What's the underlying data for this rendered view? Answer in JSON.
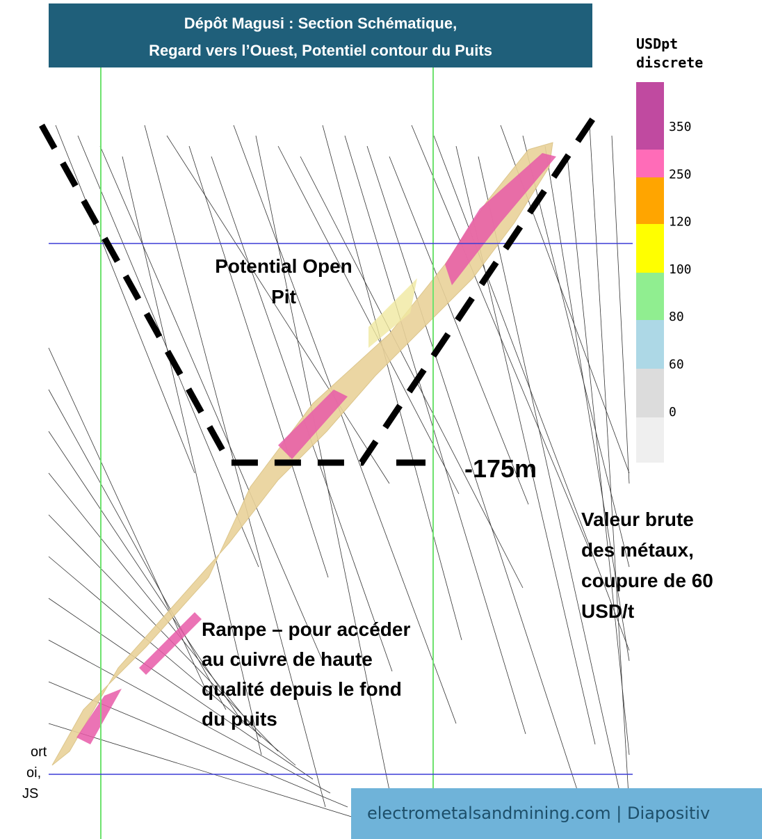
{
  "header": {
    "title_lines": [
      "Dépôt Magusi : Section Schématique,",
      "Regard vers l’Ouest, Potentiel contour du Puits"
    ]
  },
  "legend": {
    "title_lines": [
      "USDpt",
      "discrete"
    ],
    "labels": [
      "350",
      "250",
      "120",
      "100",
      "80",
      "60",
      "0"
    ]
  },
  "annotations": {
    "open_pit": [
      "Potential Open",
      "Pit"
    ],
    "depth": "-175m",
    "value_note": [
      "Valeur brute",
      "des métaux,",
      "coupure de 60",
      "USD/t"
    ],
    "ramp": [
      "Rampe – pour accéder",
      "au cuivre de haute",
      "qualité depuis le fond",
      "du puits"
    ],
    "cut_text": [
      "ort",
      "oi,",
      "JS"
    ]
  },
  "footer": {
    "text": "electrometalsandmining.com | Diapositiv"
  }
}
